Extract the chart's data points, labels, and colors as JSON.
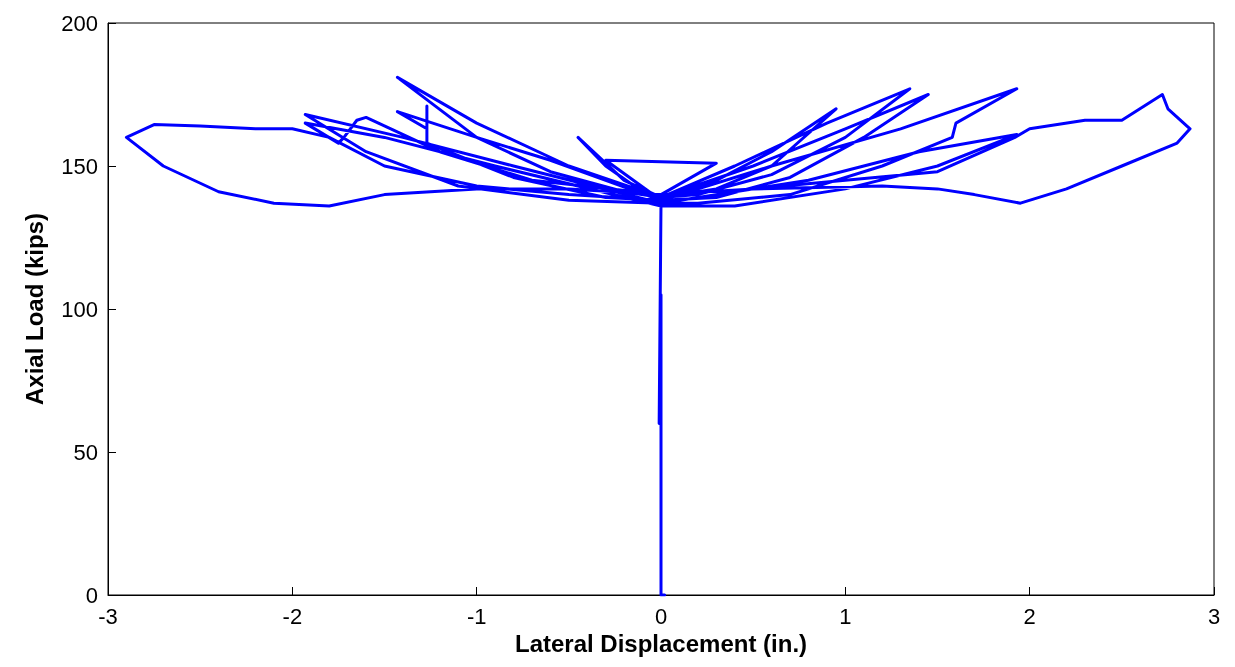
{
  "chart_data": {
    "type": "line",
    "xlabel": "Lateral Displacement (in.)",
    "ylabel": "Axial Load (kips)",
    "xlim": [
      -3,
      3
    ],
    "xticks": [
      -3,
      -2,
      -1,
      0,
      1,
      2,
      3
    ],
    "ylim": [
      0,
      200
    ],
    "yticks": [
      0,
      50,
      100,
      150,
      200
    ],
    "grid": false,
    "marker": "none",
    "line_style": "solid",
    "series": [
      {
        "color": "#0000ff",
        "x": [
          0.02,
          0,
          0,
          -0.01,
          0,
          0,
          0.3,
          0.6,
          0.95,
          0.6,
          0.3,
          0,
          -0.2,
          -0.45,
          -0.3,
          -0.1,
          0,
          0.4,
          0.9,
          1.35,
          1.0,
          0.6,
          0.2,
          0,
          -0.5,
          -1.0,
          -1.43,
          -1.0,
          -0.6,
          -0.2,
          0,
          0.5,
          1.0,
          1.45,
          1.1,
          0.7,
          0.3,
          0,
          -0.6,
          -1.0,
          -1.43,
          -1.27,
          -1.27,
          -1.27,
          -0.8,
          -0.3,
          0,
          0.6,
          1.3,
          1.93,
          1.6,
          1.58,
          1.2,
          0.7,
          0.2,
          0,
          -0.8,
          -1.4,
          -1.93,
          -1.6,
          -1.1,
          -0.5,
          0,
          0.8,
          1.4,
          1.93,
          1.5,
          1.0,
          0.4,
          0,
          -0.9,
          -1.5,
          -1.93,
          -1.75,
          -1.72,
          -1.65,
          -1.6,
          -1.2,
          -0.7,
          0,
          0.5,
          1.0,
          1.5,
          1.92,
          2.0,
          2.3,
          2.5,
          2.72,
          2.75,
          2.87,
          2.8,
          2.5,
          2.2,
          1.95,
          1.7,
          1.5,
          1.2,
          0.5,
          0,
          -0.5,
          -1.0,
          -1.5,
          -1.8,
          -2.1,
          -2.4,
          -2.7,
          -2.9,
          -2.75,
          -2.5,
          -2.2,
          -2.0,
          -1.8,
          -1.5,
          -1.0,
          -0.5,
          0,
          -0.3,
          0.3,
          0
        ],
        "values": [
          0,
          0,
          105,
          60,
          137,
          138,
          145,
          155,
          170,
          150,
          142,
          139,
          145,
          160,
          150,
          141,
          139,
          150,
          165,
          177,
          160,
          147,
          140,
          139,
          150,
          165,
          181,
          160,
          148,
          141,
          139,
          150,
          163,
          175,
          160,
          146,
          139,
          138,
          152,
          160,
          169,
          163,
          171,
          158,
          146,
          139,
          138,
          150,
          163,
          177,
          165,
          160,
          150,
          140,
          137,
          137,
          150,
          160,
          168,
          155,
          143,
          138,
          137,
          145,
          155,
          161,
          150,
          142,
          136,
          136,
          150,
          160,
          165,
          158,
          160,
          166,
          167,
          155,
          145,
          140,
          142,
          145,
          148,
          160,
          163,
          166,
          166,
          175,
          170,
          163,
          158,
          150,
          142,
          137,
          140,
          142,
          143,
          142,
          140,
          142,
          142,
          140,
          136,
          137,
          141,
          150,
          160,
          164.5,
          164,
          163,
          163,
          160,
          150,
          143,
          140,
          138,
          152,
          151,
          140
        ]
      }
    ]
  }
}
